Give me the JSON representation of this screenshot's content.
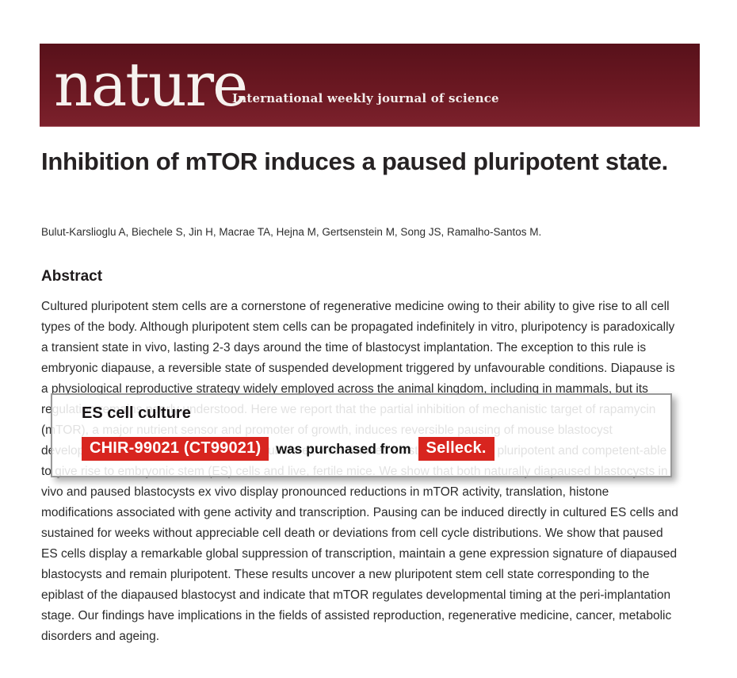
{
  "masthead": {
    "logo": "nature",
    "tagline": "International weekly journal of science",
    "background_top_color": "#58111a",
    "background_bottom_color": "#7c212c",
    "text_color": "#ffffff"
  },
  "article": {
    "title": "Inhibition of mTOR induces a paused pluripotent state.",
    "authors": "Bulut-Karslioglu A, Biechele S, Jin H, Macrae TA, Hejna M, Gertsenstein M, Song JS, Ramalho-Santos M.",
    "section_heading": "Abstract",
    "abstract_lines": [
      "Cultured pluripotent stem cells are a cornerstone of regenerative medicine owing to their ability to give rise to all cell",
      "types of the body. Although pluripotent stem cells can be propagated indefinitely in vitro, pluripotency is paradoxically",
      "a transient state in vivo, lasting 2-3 days around the time of blastocyst implantation. The exception to this rule is",
      "embryonic diapause, a reversible state of suspended development triggered by unfavourable conditions. Diapause is",
      "a physiological reproductive strategy widely employed across the animal kingdom, including in mammals, but its",
      "regulation remains poorly understood. Here we report that the partial inhibition of mechanistic target of rapamycin",
      "(mTOR), a major nutrient sensor and promoter of growth, induces reversible pausing of mouse blastocyst",
      "development and allows their prolonged culture ex vivo. Paused blastocysts remain pluripotent and competent-able",
      "to give rise to embryonic stem (ES) cells and live, fertile mice. We show that both naturally diapaused blastocysts in",
      "vivo and paused blastocysts ex vivo display pronounced reductions in mTOR activity, translation, histone",
      "modifications associated with gene activity and transcription. Pausing can be induced directly in cultured ES cells and",
      "sustained for weeks without appreciable cell death or deviations from cell cycle distributions. We show that paused",
      "ES cells display a remarkable global suppression of transcription, maintain a gene expression signature of diapaused",
      "blastocysts and remain pluripotent. These results uncover a new pluripotent stem cell state corresponding to the",
      "epiblast of the diapaused blastocyst and indicate that mTOR regulates developmental timing at the peri-implantation",
      "stage. Our findings have implications in the fields of assisted reproduction, regenerative medicine, cancer, metabolic",
      "disorders and ageing."
    ]
  },
  "overlay": {
    "heading": "ES cell culture",
    "product_badge": "CHIR-99021 (CT99021)",
    "connector_text": "was purchased from",
    "vendor_badge": "Selleck.",
    "badge_background_color": "#d8251f",
    "badge_text_color": "#ffffff"
  }
}
